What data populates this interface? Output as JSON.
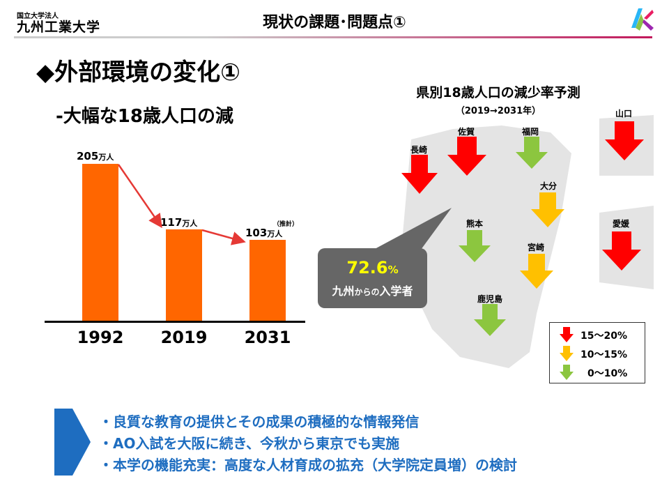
{
  "header": {
    "logo_small": "国立大学法人",
    "logo_main": "九州工業大学",
    "slide_title": "現状の課題･問題点①"
  },
  "colors": {
    "accent_blue": "#1e6dc0",
    "bar_orange": "#ff6600",
    "arrow_red": "#ff0000",
    "arrow_orange": "#ffc000",
    "arrow_green": "#8cc63f",
    "title_rule": "#c2185b",
    "callout_yellow": "#ffff00"
  },
  "section": {
    "headline": "◆外部環境の変化①",
    "subhead": "-大幅な18歳人口の減"
  },
  "chart_data": {
    "type": "bar",
    "categories": [
      "1992",
      "2019",
      "2031"
    ],
    "values": [
      205,
      117,
      103
    ],
    "value_labels": [
      "205",
      "117",
      "103"
    ],
    "unit": "万人",
    "estimate_note": "（推計）",
    "ylim": [
      0,
      230
    ]
  },
  "map": {
    "title": "県別18歳人口の減少率予測",
    "subtitle": "（2019→2031年）",
    "prefectures": [
      {
        "name": "長崎",
        "level": "red"
      },
      {
        "name": "佐賀",
        "level": "red"
      },
      {
        "name": "福岡",
        "level": "green"
      },
      {
        "name": "大分",
        "level": "orange"
      },
      {
        "name": "熊本",
        "level": "green"
      },
      {
        "name": "宮崎",
        "level": "orange"
      },
      {
        "name": "鹿児島",
        "level": "green"
      },
      {
        "name": "山口",
        "level": "red"
      },
      {
        "name": "愛媛",
        "level": "red"
      }
    ],
    "callout": {
      "percent": "72.6",
      "percent_unit": "%",
      "text_a": "九州",
      "text_b": "からの",
      "text_c": "入学者"
    },
    "legend": [
      {
        "label": "15～20%",
        "level": "red"
      },
      {
        "label": "10～15%",
        "level": "orange"
      },
      {
        "label": "0～10%",
        "level": "green"
      }
    ]
  },
  "bullets": [
    "・良質な教育の提供とその成果の積極的な情報発信",
    "・AO入試を大阪に続き、今秋から東京でも実施",
    "・本学の機能充実：高度な人材育成の拡充（大学院定員増）の検討"
  ]
}
